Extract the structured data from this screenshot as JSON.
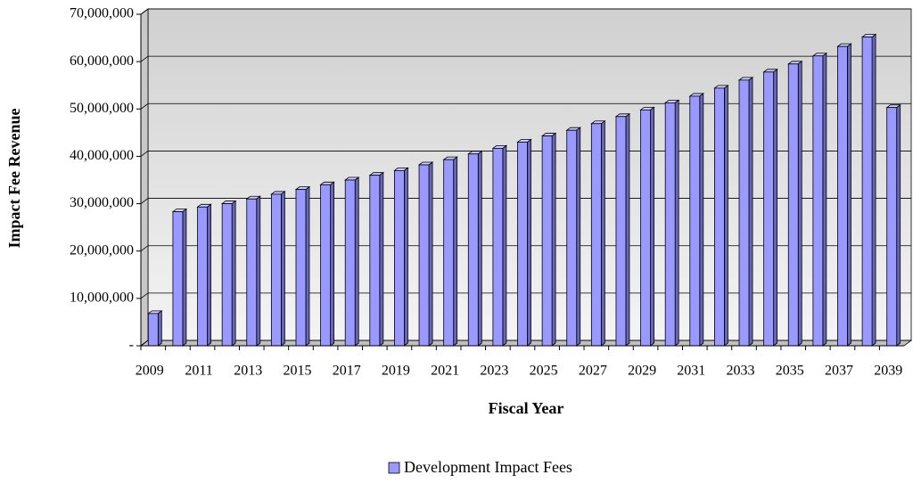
{
  "chart_data": {
    "type": "bar3d",
    "x_label": "Fiscal Year",
    "y_label": "Impact Fee Revenue",
    "categories": [
      "2009",
      null,
      "2011",
      null,
      "2013",
      null,
      "2015",
      null,
      "2017",
      null,
      "2019",
      null,
      "2021",
      null,
      "2023",
      null,
      "2025",
      null,
      "2027",
      null,
      "2029",
      null,
      "2031",
      null,
      "2033",
      null,
      "2035",
      null,
      "2037",
      null,
      "2039"
    ],
    "series": [
      {
        "name": "Development Impact Fees",
        "color": "#9999ff",
        "values": [
          6800000,
          28300000,
          29300000,
          30000000,
          31000000,
          32000000,
          33000000,
          34000000,
          35000000,
          36000000,
          37000000,
          38200000,
          39300000,
          40500000,
          41700000,
          43000000,
          44300000,
          45500000,
          46900000,
          48400000,
          49800000,
          51300000,
          52700000,
          54400000,
          56100000,
          57800000,
          59500000,
          61200000,
          63200000,
          65200000,
          50300000
        ]
      }
    ],
    "ylim": [
      0,
      70000000
    ],
    "yticks": [
      {
        "value": 0,
        "label": "-"
      },
      {
        "value": 10000000,
        "label": "10,000,000"
      },
      {
        "value": 20000000,
        "label": "20,000,000"
      },
      {
        "value": 30000000,
        "label": "30,000,000"
      },
      {
        "value": 40000000,
        "label": "40,000,000"
      },
      {
        "value": 50000000,
        "label": "50,000,000"
      },
      {
        "value": 60000000,
        "label": "60,000,000"
      },
      {
        "value": 70000000,
        "label": "70,000,000"
      }
    ],
    "grid": true,
    "legend": "bottom"
  }
}
